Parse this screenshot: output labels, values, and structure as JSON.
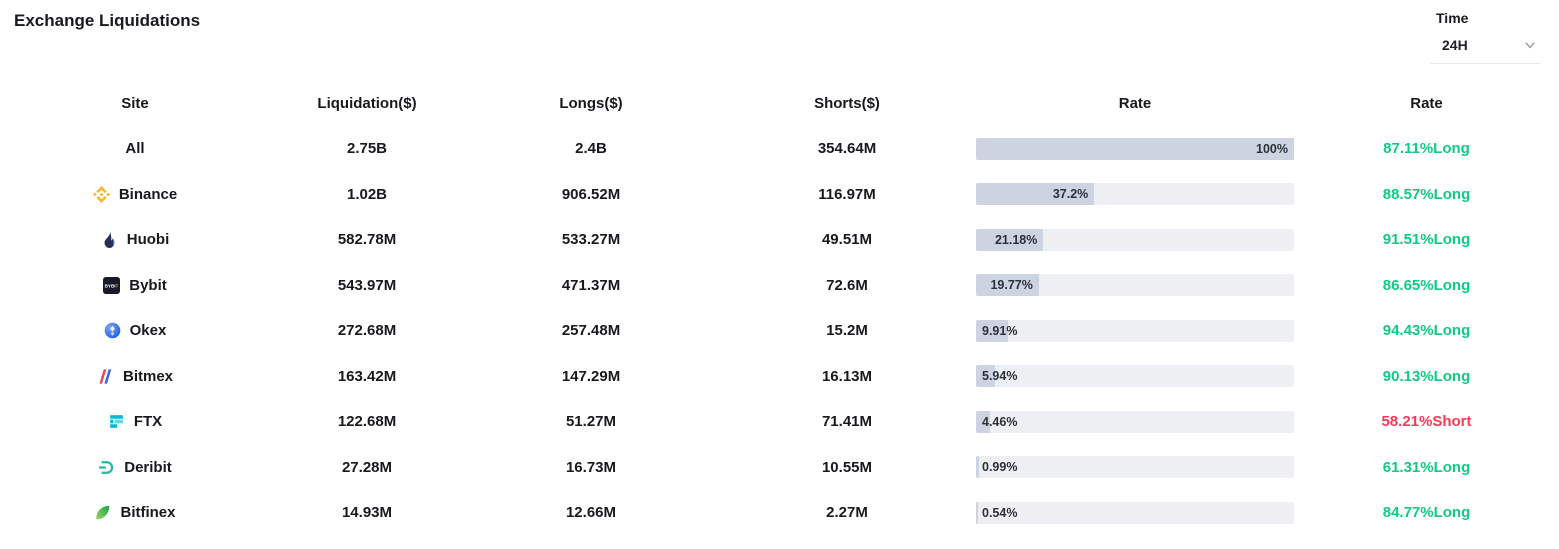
{
  "header": {
    "title": "Exchange Liquidations"
  },
  "time_filter": {
    "label": "Time",
    "value": "24H"
  },
  "colors": {
    "long": "#0ecb81",
    "short": "#f23b57",
    "bar_fill": "#ccd4e2",
    "bar_track": "#edeff3"
  },
  "table": {
    "columns": {
      "site": "Site",
      "liquidation": "Liquidation($)",
      "longs": "Longs($)",
      "shorts": "Shorts($)",
      "rate_bar": "Rate",
      "rate": "Rate"
    },
    "rows": [
      {
        "site": "All",
        "liquidation": "2.75B",
        "longs": "2.4B",
        "shorts": "354.64M",
        "rate_pct": 100,
        "rate_label": "100%",
        "rate2": "87.11%Long",
        "rate2_color": "#0ecb81"
      },
      {
        "site": "Binance",
        "liquidation": "1.02B",
        "longs": "906.52M",
        "shorts": "116.97M",
        "rate_pct": 37.2,
        "rate_label": "37.2%",
        "rate2": "88.57%Long",
        "rate2_color": "#0ecb81"
      },
      {
        "site": "Huobi",
        "liquidation": "582.78M",
        "longs": "533.27M",
        "shorts": "49.51M",
        "rate_pct": 21.18,
        "rate_label": "21.18%",
        "rate2": "91.51%Long",
        "rate2_color": "#0ecb81"
      },
      {
        "site": "Bybit",
        "liquidation": "543.97M",
        "longs": "471.37M",
        "shorts": "72.6M",
        "rate_pct": 19.77,
        "rate_label": "19.77%",
        "rate2": "86.65%Long",
        "rate2_color": "#0ecb81"
      },
      {
        "site": "Okex",
        "liquidation": "272.68M",
        "longs": "257.48M",
        "shorts": "15.2M",
        "rate_pct": 9.91,
        "rate_label": "9.91%",
        "rate2": "94.43%Long",
        "rate2_color": "#0ecb81"
      },
      {
        "site": "Bitmex",
        "liquidation": "163.42M",
        "longs": "147.29M",
        "shorts": "16.13M",
        "rate_pct": 5.94,
        "rate_label": "5.94%",
        "rate2": "90.13%Long",
        "rate2_color": "#0ecb81"
      },
      {
        "site": "FTX",
        "liquidation": "122.68M",
        "longs": "51.27M",
        "shorts": "71.41M",
        "rate_pct": 4.46,
        "rate_label": "4.46%",
        "rate2": "58.21%Short",
        "rate2_color": "#f23b57"
      },
      {
        "site": "Deribit",
        "liquidation": "27.28M",
        "longs": "16.73M",
        "shorts": "10.55M",
        "rate_pct": 0.99,
        "rate_label": "0.99%",
        "rate2": "61.31%Long",
        "rate2_color": "#0ecb81"
      },
      {
        "site": "Bitfinex",
        "liquidation": "14.93M",
        "longs": "12.66M",
        "shorts": "2.27M",
        "rate_pct": 0.54,
        "rate_label": "0.54%",
        "rate2": "84.77%Long",
        "rate2_color": "#0ecb81"
      }
    ]
  }
}
